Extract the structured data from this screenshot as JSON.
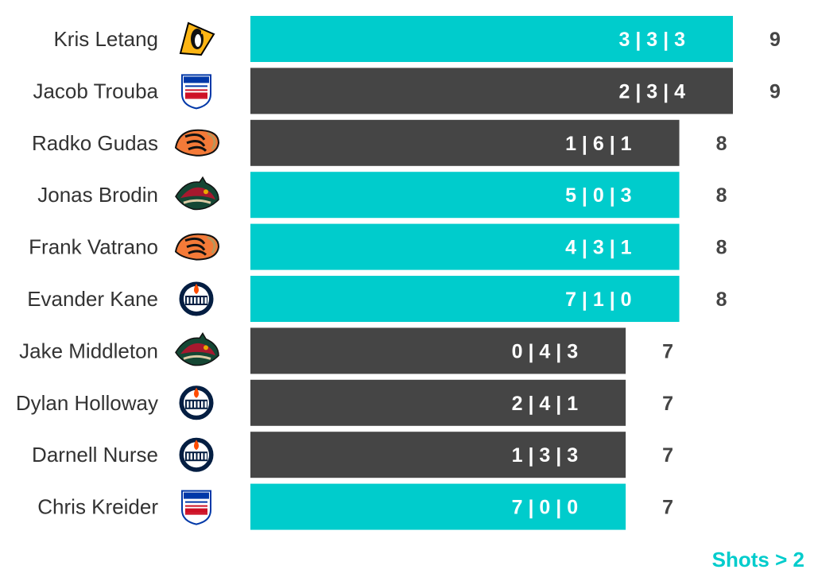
{
  "colors": {
    "highlight": "#00CCCC",
    "default": "#454545",
    "total_text": "#454545",
    "label_text": "#333333",
    "bar_text": "#ffffff"
  },
  "note": "Shots > 2",
  "chart_data": {
    "type": "bar",
    "orientation": "horizontal",
    "categories": [
      "Kris Letang",
      "Jacob Trouba",
      "Radko Gudas",
      "Jonas Brodin",
      "Frank Vatrano",
      "Evander Kane",
      "Jake Middleton",
      "Dylan Holloway",
      "Darnell Nurse",
      "Chris Kreider"
    ],
    "values": [
      9,
      9,
      8,
      8,
      8,
      8,
      7,
      7,
      7,
      7
    ],
    "bar_labels": [
      "3 | 3 | 3",
      "2 | 3 | 4",
      "1 | 6 | 1",
      "5 | 0 | 3",
      "4 | 3 | 1",
      "7 | 1 | 0",
      "0 | 4 | 3",
      "2 | 4 | 1",
      "1 | 3 | 3",
      "7 | 0 | 0"
    ],
    "highlighted": [
      true,
      false,
      false,
      true,
      true,
      true,
      false,
      false,
      false,
      true
    ],
    "teams": [
      "penguins",
      "rangers",
      "ducks",
      "wild",
      "ducks",
      "oilers",
      "wild",
      "oilers",
      "oilers",
      "rangers"
    ],
    "xlim": [
      0,
      9
    ],
    "grid": false,
    "legend": "bottom-right"
  }
}
